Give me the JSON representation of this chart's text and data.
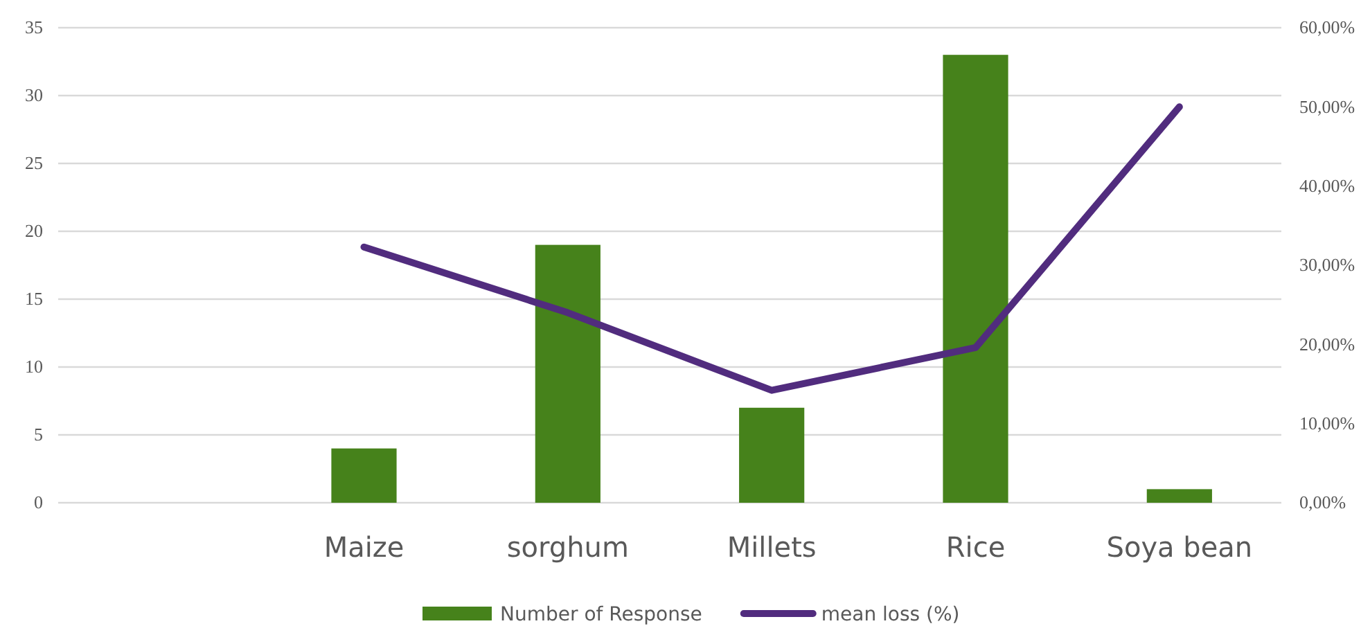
{
  "chart_data": {
    "type": "bar",
    "categories": [
      null,
      "Maize",
      "sorghum",
      "Millets",
      "Rice",
      "Soya bean"
    ],
    "series": [
      {
        "name": "Number of Response",
        "color": "#46821b",
        "values": [
          null,
          4,
          19,
          7,
          33,
          1
        ]
      },
      {
        "name": "mean loss (%)",
        "type": "line",
        "axis": "y2",
        "color": "#512c7e",
        "values": [
          null,
          32.3,
          24.0,
          14.2,
          19.6,
          50.0
        ]
      }
    ],
    "ylim": [
      0,
      35
    ],
    "yticks": [
      0,
      5,
      10,
      15,
      20,
      25,
      30,
      35
    ],
    "y2lim": [
      0,
      60
    ],
    "y2ticks": [
      {
        "value": 0,
        "label": "0,00%"
      },
      {
        "value": 10,
        "label": "10,00%"
      },
      {
        "value": 20,
        "label": "20,00%"
      },
      {
        "value": 30,
        "label": "30,00%"
      },
      {
        "value": 40,
        "label": "40,00%"
      },
      {
        "value": 50,
        "label": "50,00%"
      },
      {
        "value": 60,
        "label": "60,00%"
      }
    ],
    "grid": "y",
    "legend": "bottom",
    "line_style": "solid",
    "marker": "none"
  }
}
